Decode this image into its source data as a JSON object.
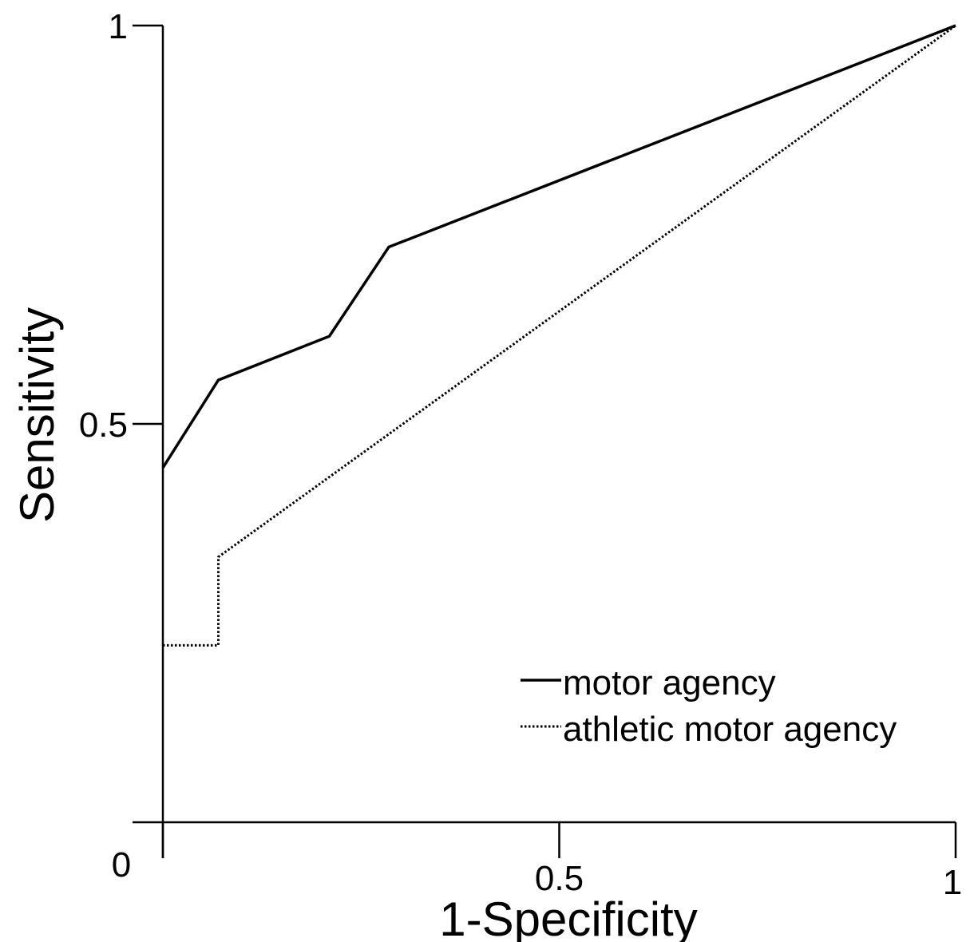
{
  "chart_data": {
    "type": "line",
    "title": "",
    "xlabel": "1-Specificity",
    "ylabel": "Sensitivity",
    "xlim": [
      0,
      1
    ],
    "ylim": [
      0,
      1
    ],
    "xticks": [
      {
        "value": 0,
        "label": "0"
      },
      {
        "value": 0.5,
        "label": "0.5"
      },
      {
        "value": 1,
        "label": "1"
      }
    ],
    "yticks": [
      {
        "value": 0.5,
        "label": "0.5"
      },
      {
        "value": 1,
        "label": "1"
      }
    ],
    "grid": false,
    "legend_position": "bottom-right",
    "series": [
      {
        "name": "motor agency",
        "style": "solid",
        "color": "#000000",
        "x": [
          0,
          0.07,
          0.21,
          0.285,
          1
        ],
        "y": [
          0.445,
          0.555,
          0.61,
          0.722,
          1
        ]
      },
      {
        "name": "athletic motor agency",
        "style": "dotted",
        "color": "#000000",
        "x": [
          0,
          0.07,
          0.07,
          1
        ],
        "y": [
          0.222,
          0.222,
          0.333,
          1
        ]
      }
    ]
  }
}
